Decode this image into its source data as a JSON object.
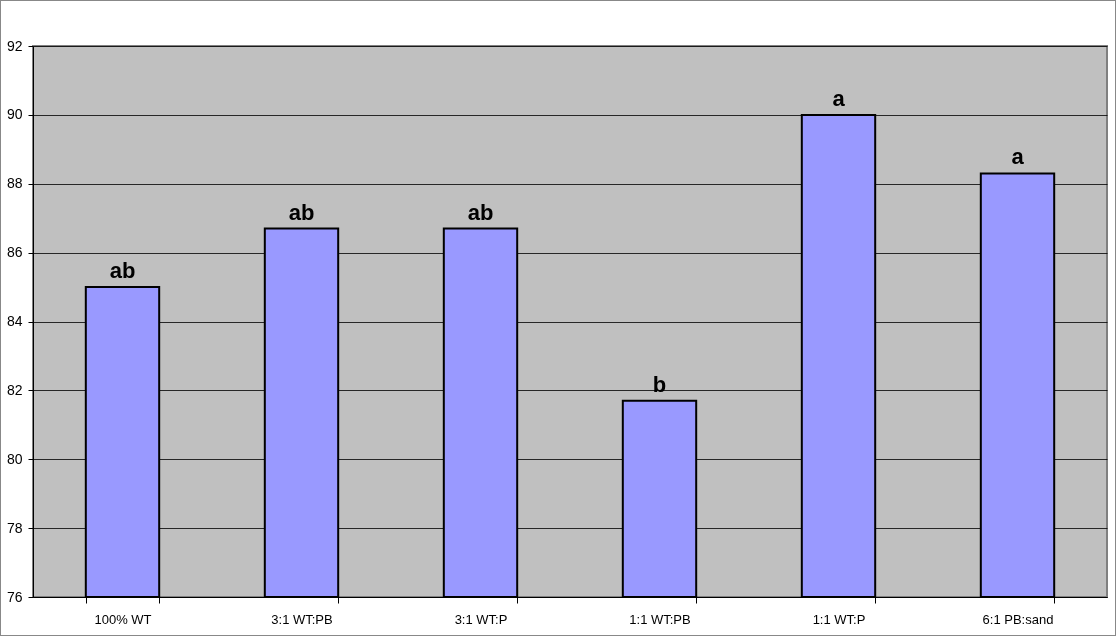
{
  "chart_data": {
    "type": "bar",
    "categories": [
      "100% WT",
      "3:1 WT:PB",
      "3:1 WT:P",
      "1:1 WT:PB",
      "1:1 WT:P",
      "6:1 PB:sand"
    ],
    "values": [
      85.0,
      86.7,
      86.7,
      81.7,
      90.0,
      88.3
    ],
    "color": "#9999ff",
    "ylim": [
      76,
      92
    ],
    "yticks": [
      76,
      78,
      80,
      82,
      84,
      86,
      88,
      90,
      92
    ],
    "grid": "y",
    "annotations": [
      {
        "text": "ab",
        "x": "100% WT",
        "y": 85.0
      },
      {
        "text": "ab",
        "x": "3:1 WT:PB",
        "y": 86.7
      },
      {
        "text": "ab",
        "x": "3:1 WT:P",
        "y": 86.7
      },
      {
        "text": "b",
        "x": "1:1 WT:PB",
        "y": 81.7
      },
      {
        "text": "a",
        "x": "1:1 WT:P",
        "y": 90.0
      },
      {
        "text": "a",
        "x": "6:1 PB:sand",
        "y": 88.3
      }
    ]
  }
}
